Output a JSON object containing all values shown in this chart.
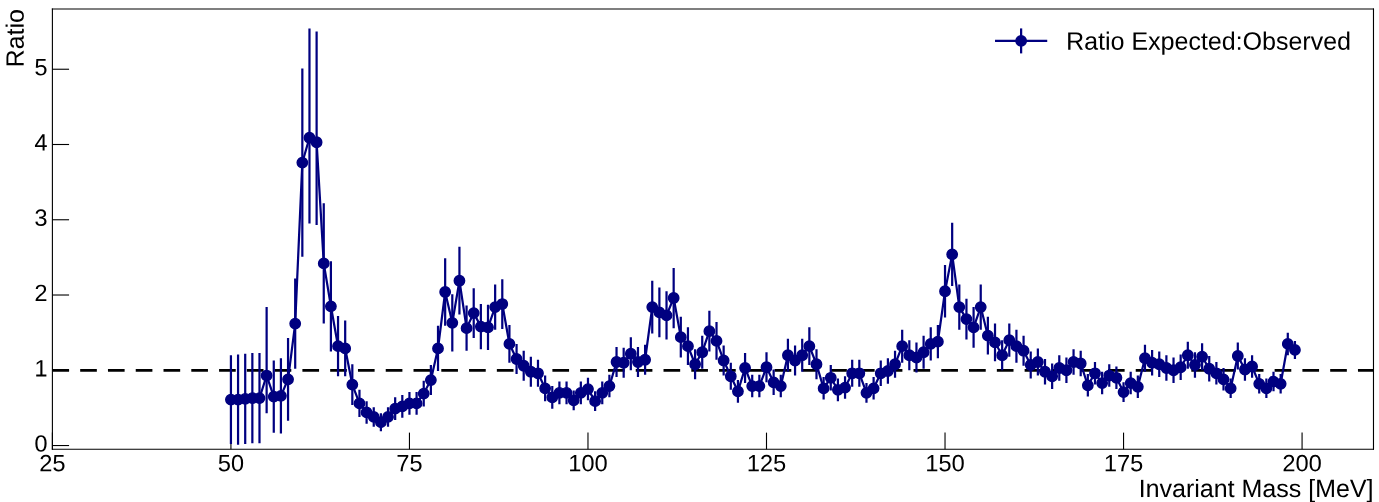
{
  "chart_data": {
    "type": "line",
    "xlabel": "Invariant Mass [MeV]",
    "ylabel": "Ratio",
    "xlim": [
      25,
      210
    ],
    "xticks": [
      25,
      50,
      75,
      100,
      125,
      150,
      175,
      200
    ],
    "ylim": [
      -0.05,
      5.8
    ],
    "yticks": [
      0,
      1,
      2,
      3,
      4,
      5
    ],
    "marker": "circle",
    "line_style": "solid",
    "legend": "top right",
    "grid": false,
    "ref_lines": [
      {
        "axis": "y",
        "value": 1,
        "color": "#000000",
        "line_style": "dashed"
      }
    ],
    "series": [
      {
        "name": "Ratio Expected:Observed",
        "color": "#000080",
        "x": [
          50,
          51,
          52,
          53,
          54,
          55,
          56,
          57,
          58,
          59,
          60,
          61,
          62,
          63,
          64,
          65,
          66,
          67,
          68,
          69,
          70,
          71,
          72,
          73,
          74,
          75,
          76,
          77,
          78,
          79,
          80,
          81,
          82,
          83,
          84,
          85,
          86,
          87,
          88,
          89,
          90,
          91,
          92,
          93,
          94,
          95,
          96,
          97,
          98,
          99,
          100,
          101,
          102,
          103,
          104,
          105,
          106,
          107,
          108,
          109,
          110,
          111,
          112,
          113,
          114,
          115,
          116,
          117,
          118,
          119,
          120,
          121,
          122,
          123,
          124,
          125,
          126,
          127,
          128,
          129,
          130,
          131,
          132,
          133,
          134,
          135,
          136,
          137,
          138,
          139,
          140,
          141,
          142,
          143,
          144,
          145,
          146,
          147,
          148,
          149,
          150,
          151,
          152,
          153,
          154,
          155,
          156,
          157,
          158,
          159,
          160,
          161,
          162,
          163,
          164,
          165,
          166,
          167,
          168,
          169,
          170,
          171,
          172,
          173,
          174,
          175,
          176,
          177,
          178,
          179,
          180,
          181,
          182,
          183,
          184,
          185,
          186,
          187,
          188,
          189,
          190,
          191,
          192,
          193,
          194,
          195,
          196,
          197,
          198,
          199
        ],
        "values": [
          0.61,
          0.61,
          0.62,
          0.63,
          0.63,
          0.93,
          0.65,
          0.66,
          0.88,
          1.62,
          3.76,
          4.09,
          4.03,
          2.42,
          1.85,
          1.32,
          1.29,
          0.81,
          0.56,
          0.44,
          0.38,
          0.31,
          0.38,
          0.49,
          0.52,
          0.56,
          0.56,
          0.69,
          0.87,
          1.29,
          2.04,
          1.63,
          2.19,
          1.56,
          1.76,
          1.58,
          1.57,
          1.84,
          1.88,
          1.35,
          1.15,
          1.06,
          0.98,
          0.96,
          0.76,
          0.64,
          0.7,
          0.7,
          0.6,
          0.7,
          0.75,
          0.59,
          0.7,
          0.79,
          1.11,
          1.1,
          1.22,
          1.11,
          1.14,
          1.84,
          1.77,
          1.73,
          1.96,
          1.44,
          1.32,
          1.08,
          1.24,
          1.52,
          1.39,
          1.13,
          0.92,
          0.72,
          1.03,
          0.79,
          0.79,
          1.04,
          0.84,
          0.79,
          1.2,
          1.13,
          1.2,
          1.32,
          1.08,
          0.76,
          0.9,
          0.74,
          0.77,
          0.96,
          0.96,
          0.7,
          0.76,
          0.96,
          0.99,
          1.08,
          1.32,
          1.2,
          1.17,
          1.24,
          1.35,
          1.38,
          2.05,
          2.54,
          1.84,
          1.68,
          1.57,
          1.84,
          1.46,
          1.37,
          1.2,
          1.4,
          1.32,
          1.26,
          1.07,
          1.11,
          0.98,
          0.92,
          1.03,
          1,
          1.11,
          1.09,
          0.8,
          0.96,
          0.83,
          0.93,
          0.9,
          0.71,
          0.83,
          0.78,
          1.16,
          1.1,
          1.08,
          1.03,
          1,
          1.04,
          1.2,
          1.07,
          1.18,
          1.02,
          0.96,
          0.88,
          0.76,
          1.19,
          1.01,
          1.05,
          0.82,
          0.76,
          0.85,
          0.82,
          1.35,
          1.27
        ],
        "errors": [
          0.59,
          0.6,
          0.6,
          0.6,
          0.6,
          [
            0.43,
            1.84
          ],
          0.48,
          0.5,
          0.55,
          0.6,
          1.25,
          [
            2.95,
            5.54
          ],
          [
            2.93,
            5.5
          ],
          0.8,
          0.6,
          0.4,
          0.37,
          0.27,
          0.18,
          0.15,
          0.13,
          0.12,
          0.13,
          0.15,
          0.15,
          0.15,
          0.15,
          0.17,
          0.2,
          0.3,
          0.45,
          0.38,
          0.45,
          0.3,
          0.33,
          0.3,
          0.3,
          0.3,
          0.33,
          0.25,
          0.2,
          0.2,
          0.2,
          0.18,
          0.17,
          0.15,
          0.15,
          0.15,
          0.13,
          0.15,
          0.15,
          0.13,
          0.15,
          0.15,
          0.2,
          0.2,
          0.22,
          0.2,
          0.2,
          0.35,
          0.33,
          0.32,
          0.4,
          0.27,
          0.25,
          0.2,
          0.22,
          0.27,
          0.25,
          0.2,
          0.18,
          0.15,
          0.2,
          0.15,
          0.15,
          0.2,
          0.17,
          0.15,
          0.22,
          0.2,
          0.22,
          0.25,
          0.2,
          0.15,
          0.17,
          0.15,
          0.15,
          0.18,
          0.18,
          0.13,
          0.15,
          0.17,
          0.17,
          0.18,
          0.22,
          0.2,
          0.2,
          0.22,
          0.22,
          0.22,
          0.35,
          0.42,
          0.3,
          0.27,
          0.27,
          0.3,
          0.25,
          0.25,
          0.2,
          0.22,
          0.22,
          0.2,
          0.18,
          0.18,
          0.17,
          0.17,
          0.17,
          0.17,
          0.17,
          0.17,
          0.15,
          0.15,
          0.15,
          0.15,
          0.15,
          0.13,
          0.15,
          0.15,
          0.18,
          0.17,
          0.17,
          0.17,
          0.17,
          0.17,
          0.18,
          0.17,
          0.18,
          0.17,
          0.15,
          0.15,
          0.13,
          0.18,
          0.15,
          0.15,
          0.13,
          0.13,
          0.13,
          0.13,
          0.15,
          0.12
        ]
      }
    ]
  }
}
